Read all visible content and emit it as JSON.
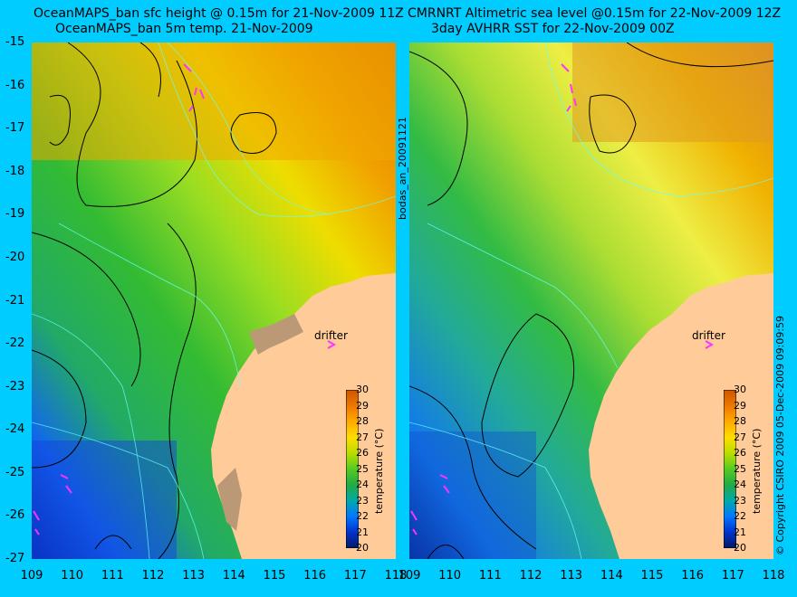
{
  "left_panel": {
    "title_line1": "OceanMAPS_ban sfc height @ 0.15m for 21-Nov-2009 11Z",
    "title_line2": "OceanMAPS_ban 5m temp. 21-Nov-2009",
    "drifter_label": "drifter"
  },
  "right_panel": {
    "title_line1": "CMRNRT Altimetric sea level  @0.15m  for 22-Nov-2009 12Z",
    "title_line2": "3day AVHRR SST for 22-Nov-2009 00Z",
    "drifter_label": "drifter"
  },
  "y_axis_ticks": [
    "-15",
    "-16",
    "-17",
    "-18",
    "-19",
    "-20",
    "-21",
    "-22",
    "-23",
    "-24",
    "-25",
    "-26",
    "-27"
  ],
  "x_axis_ticks": [
    "109",
    "110",
    "111",
    "112",
    "113",
    "114",
    "115",
    "116",
    "117",
    "118"
  ],
  "colorbar": {
    "label": "temperature (°C)",
    "ticks": [
      "30",
      "29",
      "28",
      "27",
      "26",
      "25",
      "24",
      "23",
      "22",
      "21",
      "20"
    ]
  },
  "middle_label": "bodas_an_20091121",
  "copyright": "© Copyright CSIRO 2009   05-Dec-2009 09:09:59",
  "colors": {
    "background": "#00ccff",
    "land": "#ffcc99",
    "contour": "#000000",
    "isobath": "#66ffff",
    "drifter": "#ff33ff"
  }
}
